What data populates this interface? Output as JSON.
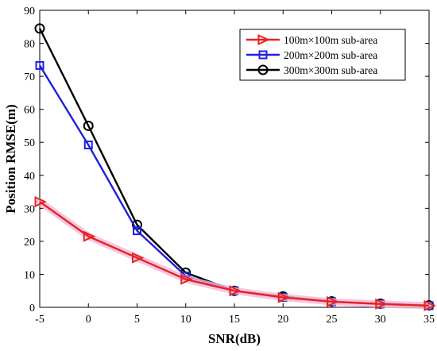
{
  "chart_data": {
    "type": "line",
    "xlabel": "SNR(dB)",
    "ylabel": "Position RMSE(m)",
    "xlim": [
      -5,
      35
    ],
    "ylim": [
      0,
      90
    ],
    "xticks": [
      -5,
      0,
      5,
      10,
      15,
      20,
      25,
      30,
      35
    ],
    "yticks": [
      0,
      10,
      20,
      30,
      40,
      50,
      60,
      70,
      80,
      90
    ],
    "grid": false,
    "legend_position": "top-right",
    "x": [
      -5,
      0,
      5,
      10,
      15,
      20,
      25,
      30,
      35
    ],
    "series": [
      {
        "name": "100m×100m sub-area",
        "color": "#e8231f",
        "marker": "triangle-right",
        "values": [
          32,
          21.5,
          15,
          8.5,
          5,
          3,
          1.7,
          1,
          0.5
        ]
      },
      {
        "name": "200m×200m sub-area",
        "color": "#1f1fe0",
        "marker": "square",
        "values": [
          73.3,
          49.2,
          23.2,
          9.5,
          5,
          3,
          1.7,
          1,
          0.5
        ]
      },
      {
        "name": "300m×300m sub-area",
        "color": "#000000",
        "marker": "circle",
        "values": [
          84.5,
          55,
          25,
          10.5,
          5,
          3.3,
          1.8,
          1.1,
          0.6
        ]
      }
    ]
  }
}
